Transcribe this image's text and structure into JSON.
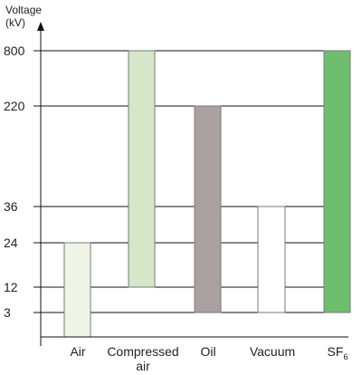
{
  "chart_data": {
    "type": "bar",
    "subtype": "floating-range",
    "ylabel_line1": "Voltage",
    "ylabel_line2": "(kV)",
    "y_scale": "categorical-ticks",
    "y_ticks": [
      "3",
      "12",
      "24",
      "36",
      "220",
      "800"
    ],
    "grid": "horizontal",
    "legend": "none",
    "categories": [
      {
        "label": "Air",
        "label_line2": "",
        "label_sub": ""
      },
      {
        "label": "Compressed",
        "label_line2": "air",
        "label_sub": ""
      },
      {
        "label": "Oil",
        "label_line2": "",
        "label_sub": ""
      },
      {
        "label": "Vacuum",
        "label_line2": "",
        "label_sub": ""
      },
      {
        "label": "SF",
        "label_line2": "",
        "label_sub": "6"
      }
    ],
    "series": [
      {
        "ranges": [
          {
            "low": "0",
            "high": "24"
          },
          {
            "low": "12",
            "high": "800"
          },
          {
            "low": "3",
            "high": "220"
          },
          {
            "low": "3",
            "high": "36"
          },
          {
            "low": "3",
            "high": "800"
          }
        ]
      }
    ],
    "colors": {
      "Air": "#eef5e6",
      "Compressed air": "#d5e7c8",
      "Oil": "#a9a19f",
      "Vacuum": "#ffffff",
      "SF6": "#6dbf6d",
      "grid": "#111111",
      "axis": "#111111",
      "bar_stroke": "#7a7a7a"
    }
  }
}
